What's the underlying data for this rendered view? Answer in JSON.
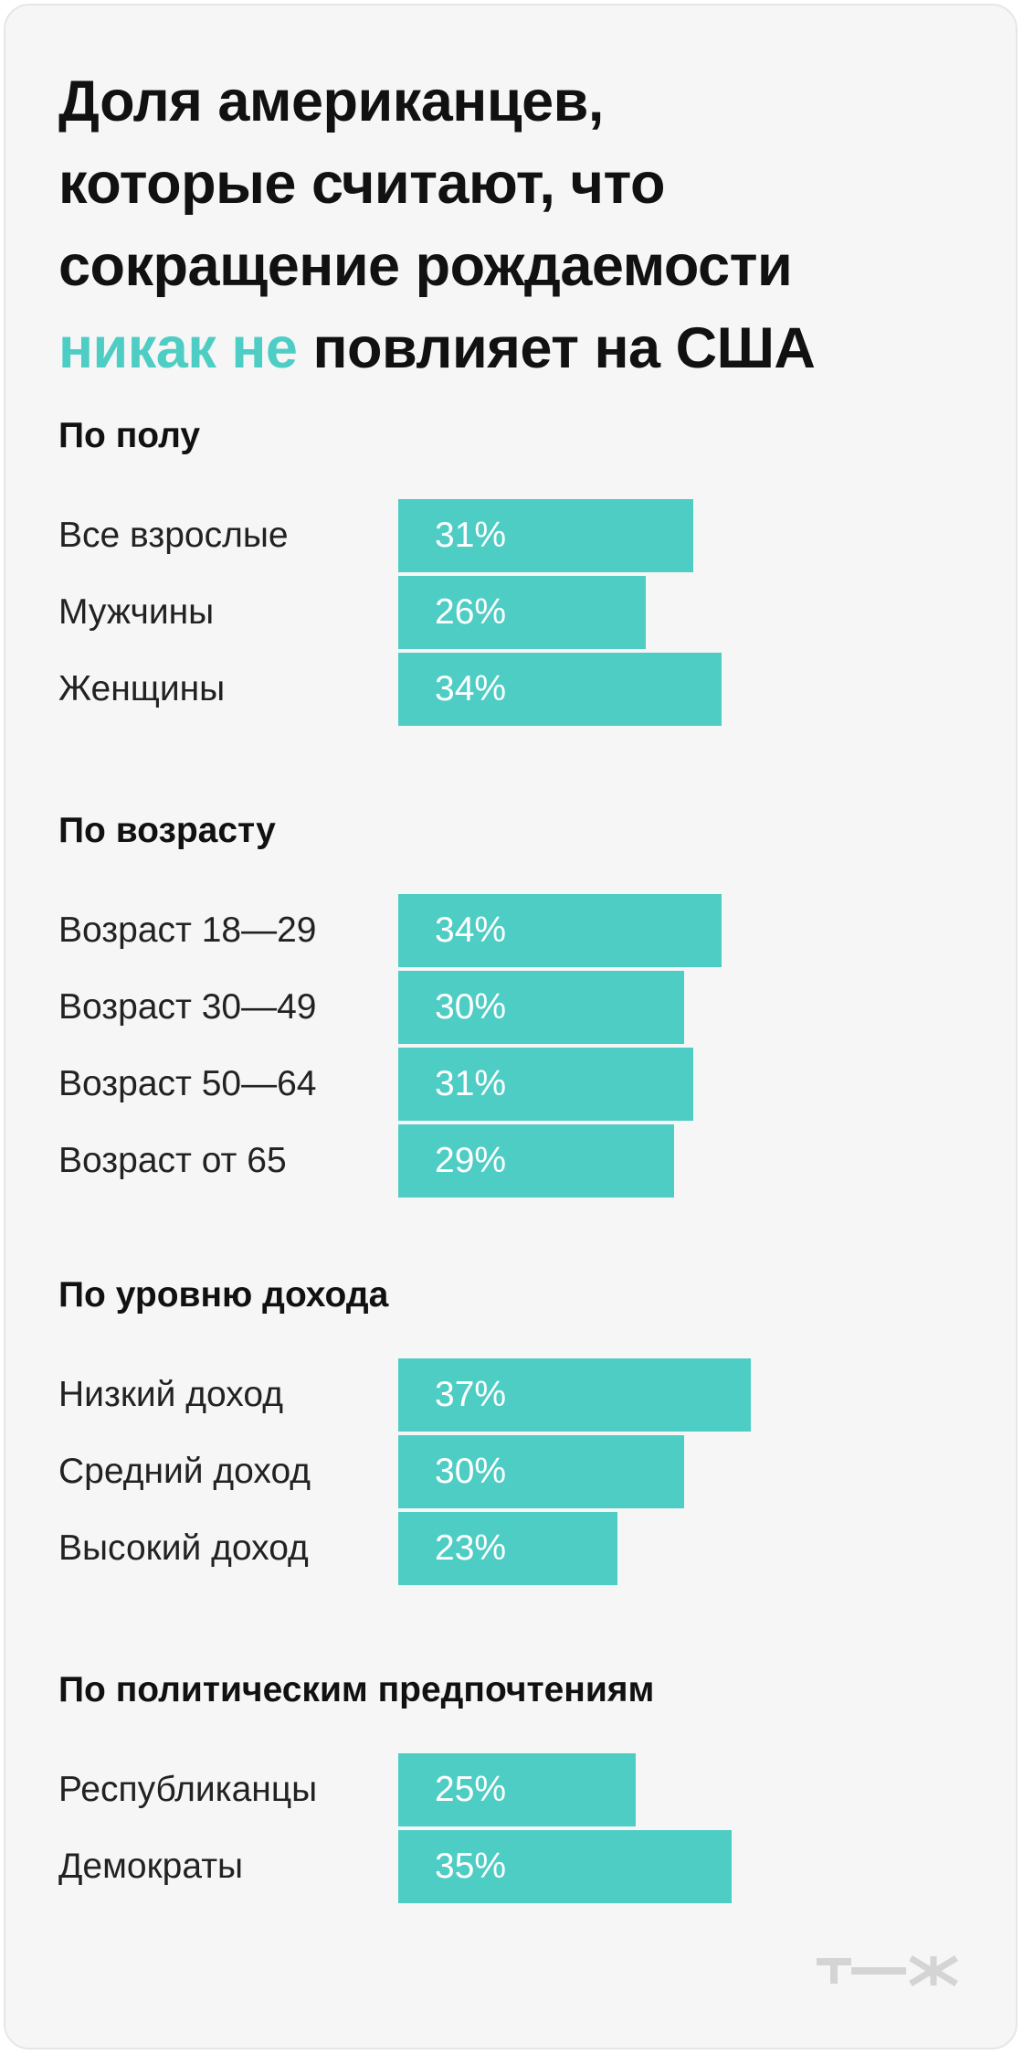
{
  "title": {
    "line1": "Доля американцев,",
    "line2": "которые считают, что",
    "line3": "сокращение рождаемости",
    "accent": "никак не",
    "tail": " повлияет на США"
  },
  "colors": {
    "bar": "#4ecdc4",
    "accent_text": "#4ecdc4",
    "background": "#f6f6f6",
    "logo": "#d4d4d4"
  },
  "logo": {
    "icon": "tzh-logo-icon"
  },
  "chart_data": {
    "type": "bar",
    "orientation": "horizontal",
    "unit": "%",
    "xlim": [
      0,
      100
    ],
    "groups": [
      {
        "title": "По полу",
        "categories": [
          "Все взрослые",
          "Мужчины",
          "Женщины"
        ],
        "values": [
          31,
          26,
          34
        ],
        "labels": [
          "31%",
          "26%",
          "34%"
        ]
      },
      {
        "title": "По возрасту",
        "categories": [
          "Возраст 18—29",
          "Возраст 30—49",
          "Возраст 50—64",
          "Возраст от 65"
        ],
        "values": [
          34,
          30,
          31,
          29
        ],
        "labels": [
          "34%",
          "30%",
          "31%",
          "29%"
        ]
      },
      {
        "title": "По уровню дохода",
        "categories": [
          "Низкий доход",
          "Средний доход",
          "Высокий доход"
        ],
        "values": [
          37,
          30,
          23
        ],
        "labels": [
          "37%",
          "30%",
          "23%"
        ]
      },
      {
        "title": "По политическим предпочтениям",
        "categories": [
          "Республиканцы",
          "Демократы"
        ],
        "values": [
          25,
          35
        ],
        "labels": [
          "25%",
          "35%"
        ]
      }
    ]
  }
}
